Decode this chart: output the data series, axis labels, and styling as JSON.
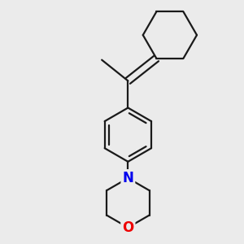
{
  "bg_color": "#ebebeb",
  "bond_color": "#1a1a1a",
  "N_color": "#0000ee",
  "O_color": "#ee0000",
  "line_width": 1.6,
  "font_size": 12,
  "figsize": [
    3.0,
    3.0
  ],
  "dpi": 100,
  "xlim": [
    -1.4,
    1.4
  ],
  "ylim": [
    -1.6,
    1.6
  ]
}
